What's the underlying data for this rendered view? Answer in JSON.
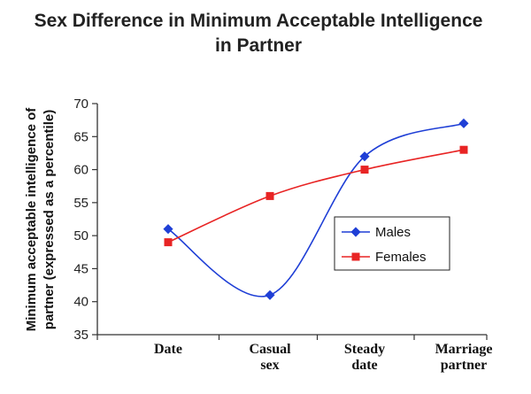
{
  "chart_data": {
    "type": "line",
    "title": [
      "Sex Difference in Minimum Acceptable Intelligence",
      "in Partner"
    ],
    "ylabel": [
      "Minimum acceptable intelligence of",
      "partner (expressed as a percentile)"
    ],
    "xlabel": "",
    "categories": [
      [
        "Date"
      ],
      [
        "Casual",
        "sex"
      ],
      [
        "Steady",
        "date"
      ],
      [
        "Marriage",
        "partner"
      ]
    ],
    "ylim": [
      35,
      70
    ],
    "yticks": [
      35,
      40,
      45,
      50,
      55,
      60,
      65,
      70
    ],
    "grid": false,
    "legend_position": "right-middle",
    "series": [
      {
        "name": "Males",
        "values": [
          51,
          41,
          62,
          67
        ],
        "color": "#1f3fd6",
        "marker": "diamond"
      },
      {
        "name": "Females",
        "values": [
          49,
          56,
          60,
          63
        ],
        "color": "#e82424",
        "marker": "square"
      }
    ]
  }
}
